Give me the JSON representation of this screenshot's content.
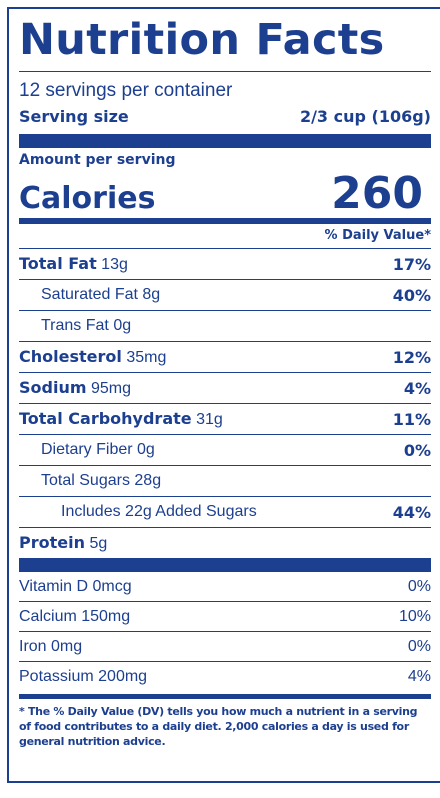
{
  "title": "Nutrition Facts",
  "servings_per_container": "12 servings per container",
  "serving_size": {
    "label": "Serving size",
    "value": "2/3 cup (106g)"
  },
  "amount_per_serving": "Amount per serving",
  "calories": {
    "label": "Calories",
    "value": "260"
  },
  "daily_value_header": "% Daily Value*",
  "nutrients": [
    {
      "name": "Total Fat",
      "amount": "13g",
      "dv": "17%"
    },
    {
      "name": "Saturated Fat",
      "amount": "8g",
      "dv": "40%"
    },
    {
      "name": "Trans Fat",
      "amount": "0g",
      "dv": ""
    },
    {
      "name": "Cholesterol",
      "amount": "35mg",
      "dv": "12%"
    },
    {
      "name": "Sodium",
      "amount": "95mg",
      "dv": "4%"
    },
    {
      "name": "Total Carbohydrate",
      "amount": "31g",
      "dv": "11%"
    },
    {
      "name": "Dietary Fiber",
      "amount": "0g",
      "dv": "0%"
    },
    {
      "name": "Total Sugars",
      "amount": "28g",
      "dv": ""
    },
    {
      "name": "Includes 22g Added Sugars",
      "amount": "",
      "dv": "44%"
    },
    {
      "name": "Protein",
      "amount": "5g",
      "dv": ""
    }
  ],
  "vitamins": [
    {
      "label": "Vitamin D 0mcg",
      "dv": "0%"
    },
    {
      "label": "Calcium 150mg",
      "dv": "10%"
    },
    {
      "label": "Iron 0mg",
      "dv": "0%"
    },
    {
      "label": "Potassium 200mg",
      "dv": "4%"
    }
  ],
  "footnote": "* The % Daily Value (DV) tells you how much a nutrient in a serving of food contributes to a daily diet. 2,000 calories a day is used for general nutrition advice.",
  "colors": {
    "ink": "#1d3f8f",
    "background": "#ffffff"
  }
}
